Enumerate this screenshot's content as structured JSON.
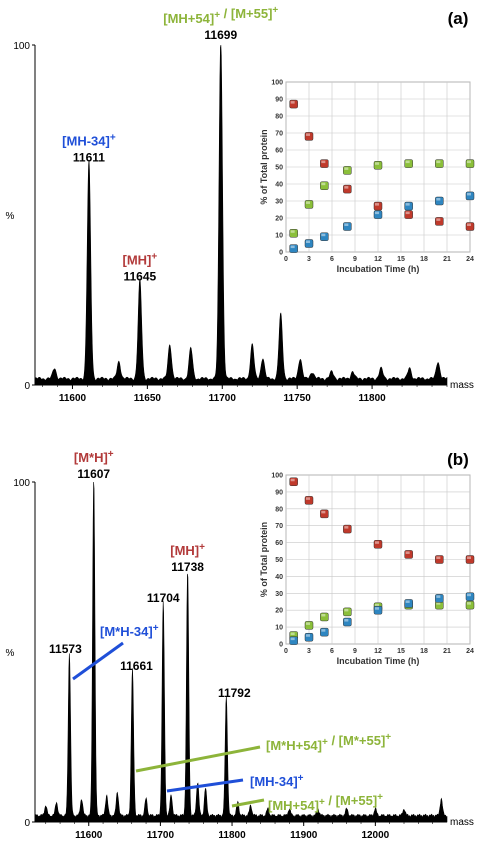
{
  "colors": {
    "red": "#b23a3a",
    "blue": "#1f4fd8",
    "green": "#8db43a",
    "spectrum": "#000000",
    "marker_red": "#c0392b",
    "marker_blue": "#2e86c1",
    "marker_green": "#8bbf3a"
  },
  "chart_data": [
    {
      "type": "line",
      "panel": "(a)",
      "xlabel": "mass",
      "ylabel": "%",
      "xlim": [
        11575,
        11850
      ],
      "ylim": [
        0,
        100
      ],
      "x_ticks": [
        11600,
        11650,
        11700,
        11750,
        11800
      ],
      "y_ticks": [
        0,
        100
      ],
      "peaks": [
        {
          "mass": 11588,
          "intensity": 3
        },
        {
          "mass": 11611,
          "intensity": 64,
          "label": "11611",
          "ion": "[MH-34]",
          "ion_sup": "+",
          "ion_color": "blue"
        },
        {
          "mass": 11631,
          "intensity": 5
        },
        {
          "mass": 11645,
          "intensity": 29,
          "label": "11645",
          "ion": "[MH]",
          "ion_sup": "+",
          "ion_color": "red"
        },
        {
          "mass": 11665,
          "intensity": 10
        },
        {
          "mass": 11679,
          "intensity": 9
        },
        {
          "mass": 11699,
          "intensity": 100,
          "label": "11699",
          "ion": "[MH+54]",
          "ion_sup": "+",
          "ion2": " / [M+55]",
          "ion2_sup": "+",
          "ion_color": "green"
        },
        {
          "mass": 11720,
          "intensity": 10
        },
        {
          "mass": 11727,
          "intensity": 6
        },
        {
          "mass": 11739,
          "intensity": 19
        },
        {
          "mass": 11752,
          "intensity": 6
        },
        {
          "mass": 11760,
          "intensity": 2
        },
        {
          "mass": 11773,
          "intensity": 2
        },
        {
          "mass": 11787,
          "intensity": 2
        },
        {
          "mass": 11806,
          "intensity": 3
        },
        {
          "mass": 11825,
          "intensity": 3
        },
        {
          "mass": 11844,
          "intensity": 5
        }
      ],
      "inset": {
        "type": "scatter",
        "xlabel": "Incubation Time (h)",
        "ylabel": "% of Total protein",
        "xlim": [
          0,
          24
        ],
        "ylim": [
          0,
          100
        ],
        "x_ticks": [
          0,
          3,
          6,
          9,
          12,
          15,
          18,
          21,
          24
        ],
        "y_ticks": [
          0,
          10,
          20,
          30,
          40,
          50,
          60,
          70,
          80,
          90,
          100
        ],
        "grid": true,
        "series": [
          {
            "color": "red",
            "x": [
              1,
              3,
              5,
              8,
              12,
              16,
              20,
              24
            ],
            "y": [
              87,
              68,
              52,
              37,
              27,
              22,
              18,
              15
            ]
          },
          {
            "color": "green",
            "x": [
              1,
              3,
              5,
              8,
              12,
              16,
              20,
              24
            ],
            "y": [
              11,
              28,
              39,
              48,
              51,
              52,
              52,
              52
            ]
          },
          {
            "color": "blue",
            "x": [
              1,
              3,
              5,
              8,
              12,
              16,
              20,
              24
            ],
            "y": [
              2,
              5,
              9,
              15,
              22,
              27,
              30,
              33
            ]
          }
        ]
      }
    },
    {
      "type": "line",
      "panel": "(b)",
      "xlabel": "mass",
      "ylabel": "%",
      "xlim": [
        11525,
        12100
      ],
      "ylim": [
        0,
        100
      ],
      "x_ticks": [
        11600,
        11700,
        11800,
        11900,
        12000
      ],
      "y_ticks": [
        0,
        100
      ],
      "peaks": [
        {
          "mass": 11540,
          "intensity": 3
        },
        {
          "mass": 11555,
          "intensity": 4
        },
        {
          "mass": 11573,
          "intensity": 48,
          "label": "11573"
        },
        {
          "mass": 11590,
          "intensity": 5
        },
        {
          "mass": 11607,
          "intensity": 100,
          "label": "11607",
          "ion": "[M*H]",
          "ion_sup": "+",
          "ion_color": "red"
        },
        {
          "mass": 11625,
          "intensity": 6
        },
        {
          "mass": 11640,
          "intensity": 7
        },
        {
          "mass": 11661,
          "intensity": 43,
          "label": "11661"
        },
        {
          "mass": 11680,
          "intensity": 5
        },
        {
          "mass": 11704,
          "intensity": 63,
          "label": "11704"
        },
        {
          "mass": 11715,
          "intensity": 6
        },
        {
          "mass": 11738,
          "intensity": 72,
          "label": "11738",
          "ion": "[MH]",
          "ion_sup": "+",
          "ion_color": "red"
        },
        {
          "mass": 11752,
          "intensity": 10
        },
        {
          "mass": 11763,
          "intensity": 8
        },
        {
          "mass": 11792,
          "intensity": 35,
          "label": "11792"
        },
        {
          "mass": 11808,
          "intensity": 4
        },
        {
          "mass": 11826,
          "intensity": 3
        },
        {
          "mass": 11850,
          "intensity": 2
        },
        {
          "mass": 11880,
          "intensity": 2
        },
        {
          "mass": 11920,
          "intensity": 2
        },
        {
          "mass": 11960,
          "intensity": 2
        },
        {
          "mass": 12000,
          "intensity": 2
        },
        {
          "mass": 12040,
          "intensity": 2
        },
        {
          "mass": 12092,
          "intensity": 5
        }
      ],
      "annotations": [
        {
          "text": "[M*H-34]",
          "sup": "+",
          "color": "blue"
        },
        {
          "text": "[M*H+54]",
          "sup": "+",
          "text2": " / [M*+55]",
          "sup2": "+",
          "color": "green"
        },
        {
          "text": "[MH-34]",
          "sup": "+",
          "color": "blue"
        },
        {
          "text": "[MH+54]",
          "sup": "+",
          "text2": " / [M+55]",
          "sup2": "+",
          "color": "green"
        }
      ],
      "inset": {
        "type": "scatter",
        "xlabel": "Incubation Time (h)",
        "ylabel": "% of Total protein",
        "xlim": [
          0,
          24
        ],
        "ylim": [
          0,
          100
        ],
        "x_ticks": [
          0,
          3,
          6,
          9,
          12,
          15,
          18,
          21,
          24
        ],
        "y_ticks": [
          0,
          10,
          20,
          30,
          40,
          50,
          60,
          70,
          80,
          90,
          100
        ],
        "grid": true,
        "series": [
          {
            "color": "red",
            "x": [
              1,
              3,
              5,
              8,
              12,
              16,
              20,
              24
            ],
            "y": [
              96,
              85,
              77,
              68,
              59,
              53,
              50,
              50
            ]
          },
          {
            "color": "green",
            "x": [
              1,
              3,
              5,
              8,
              12,
              16,
              20,
              24
            ],
            "y": [
              5,
              11,
              16,
              19,
              22,
              23,
              23,
              23
            ]
          },
          {
            "color": "blue",
            "x": [
              1,
              3,
              5,
              8,
              12,
              16,
              20,
              24
            ],
            "y": [
              2,
              4,
              7,
              13,
              20,
              24,
              27,
              28
            ]
          }
        ]
      }
    }
  ]
}
